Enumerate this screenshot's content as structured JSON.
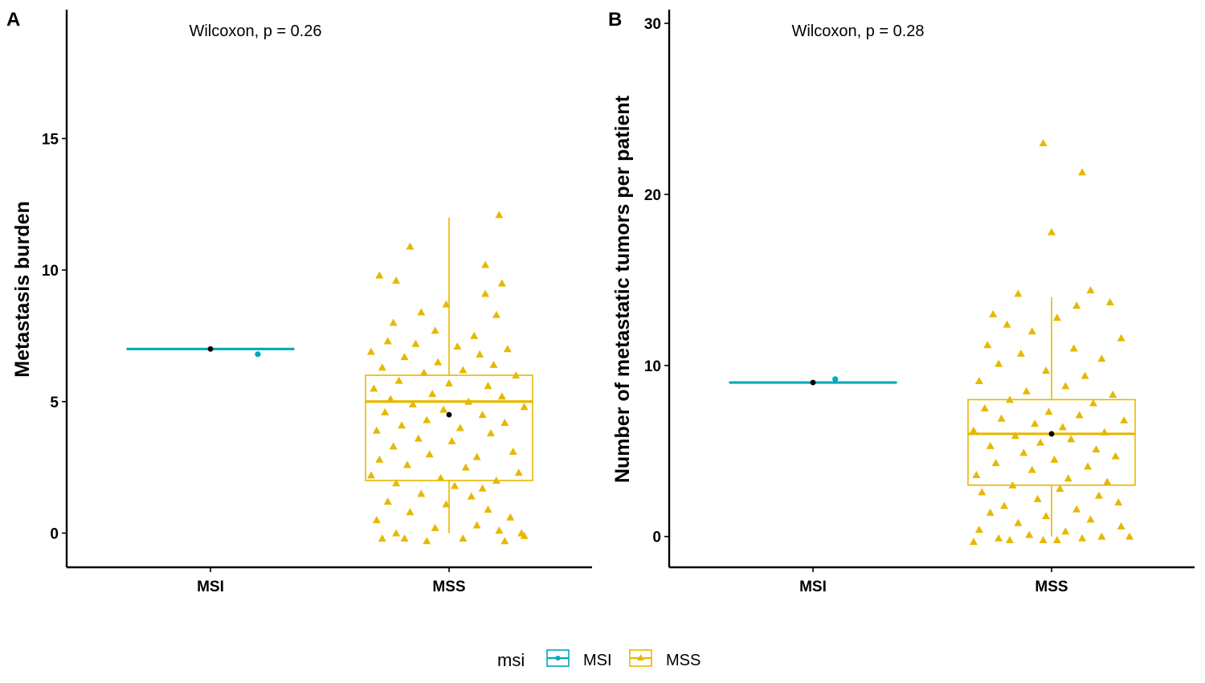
{
  "legend": {
    "title": "msi",
    "entries": [
      {
        "name": "MSI",
        "color": "#00A9BD",
        "shape": "circle"
      },
      {
        "name": "MSS",
        "color": "#E7B800",
        "shape": "triangle"
      }
    ],
    "position": "bottom"
  },
  "chart_data": [
    {
      "type": "box",
      "panel": "A",
      "annotation": "Wilcoxon, p = 0.26",
      "xlabel": "",
      "ylabel": "Metastasis burden",
      "categories": [
        "MSI",
        "MSS"
      ],
      "ylim": [
        -1.3,
        19.9
      ],
      "yticks": [
        0,
        5,
        10,
        15
      ],
      "grid": false,
      "boxes": [
        {
          "name": "MSI",
          "color": "#00A9BD",
          "q1": 7,
          "median": 7,
          "q3": 7,
          "whisker_low": 7,
          "whisker_high": 7,
          "mean": 7
        },
        {
          "name": "MSS",
          "color": "#E7B800",
          "q1": 2,
          "median": 5,
          "q3": 6,
          "whisker_low": 0,
          "whisker_high": 12,
          "mean": 4.5
        }
      ],
      "points": {
        "MSI": [
          {
            "x": 0.17,
            "y": 6.8
          }
        ],
        "MSS": [
          {
            "x": -0.14,
            "y": 10.9
          },
          {
            "x": 0.18,
            "y": 12.1
          },
          {
            "x": 0.13,
            "y": 10.2
          },
          {
            "x": -0.25,
            "y": 9.8
          },
          {
            "x": -0.19,
            "y": 9.6
          },
          {
            "x": 0.19,
            "y": 9.5
          },
          {
            "x": 0.13,
            "y": 9.1
          },
          {
            "x": -0.01,
            "y": 8.7
          },
          {
            "x": -0.1,
            "y": 8.4
          },
          {
            "x": 0.17,
            "y": 8.3
          },
          {
            "x": -0.2,
            "y": 8.0
          },
          {
            "x": -0.05,
            "y": 7.7
          },
          {
            "x": 0.09,
            "y": 7.5
          },
          {
            "x": -0.22,
            "y": 7.3
          },
          {
            "x": -0.12,
            "y": 7.2
          },
          {
            "x": 0.03,
            "y": 7.1
          },
          {
            "x": 0.21,
            "y": 7.0
          },
          {
            "x": -0.28,
            "y": 6.9
          },
          {
            "x": 0.11,
            "y": 6.8
          },
          {
            "x": -0.16,
            "y": 6.7
          },
          {
            "x": -0.04,
            "y": 6.5
          },
          {
            "x": 0.16,
            "y": 6.4
          },
          {
            "x": -0.24,
            "y": 6.3
          },
          {
            "x": 0.05,
            "y": 6.2
          },
          {
            "x": -0.09,
            "y": 6.1
          },
          {
            "x": 0.24,
            "y": 6.0
          },
          {
            "x": -0.18,
            "y": 5.8
          },
          {
            "x": 0.0,
            "y": 5.7
          },
          {
            "x": 0.14,
            "y": 5.6
          },
          {
            "x": -0.27,
            "y": 5.5
          },
          {
            "x": -0.06,
            "y": 5.3
          },
          {
            "x": 0.19,
            "y": 5.2
          },
          {
            "x": -0.21,
            "y": 5.1
          },
          {
            "x": 0.07,
            "y": 5.0
          },
          {
            "x": -0.13,
            "y": 4.9
          },
          {
            "x": 0.27,
            "y": 4.8
          },
          {
            "x": -0.02,
            "y": 4.7
          },
          {
            "x": -0.23,
            "y": 4.6
          },
          {
            "x": 0.12,
            "y": 4.5
          },
          {
            "x": -0.08,
            "y": 4.3
          },
          {
            "x": 0.2,
            "y": 4.2
          },
          {
            "x": -0.17,
            "y": 4.1
          },
          {
            "x": 0.04,
            "y": 4.0
          },
          {
            "x": -0.26,
            "y": 3.9
          },
          {
            "x": 0.15,
            "y": 3.8
          },
          {
            "x": -0.11,
            "y": 3.6
          },
          {
            "x": 0.01,
            "y": 3.5
          },
          {
            "x": -0.2,
            "y": 3.3
          },
          {
            "x": 0.23,
            "y": 3.1
          },
          {
            "x": -0.07,
            "y": 3.0
          },
          {
            "x": 0.1,
            "y": 2.9
          },
          {
            "x": -0.25,
            "y": 2.8
          },
          {
            "x": -0.15,
            "y": 2.6
          },
          {
            "x": 0.06,
            "y": 2.5
          },
          {
            "x": 0.25,
            "y": 2.3
          },
          {
            "x": -0.28,
            "y": 2.2
          },
          {
            "x": -0.03,
            "y": 2.1
          },
          {
            "x": 0.17,
            "y": 2.0
          },
          {
            "x": -0.19,
            "y": 1.9
          },
          {
            "x": 0.02,
            "y": 1.8
          },
          {
            "x": 0.12,
            "y": 1.7
          },
          {
            "x": -0.1,
            "y": 1.5
          },
          {
            "x": 0.08,
            "y": 1.4
          },
          {
            "x": -0.22,
            "y": 1.2
          },
          {
            "x": -0.01,
            "y": 1.1
          },
          {
            "x": 0.14,
            "y": 0.9
          },
          {
            "x": -0.14,
            "y": 0.8
          },
          {
            "x": 0.22,
            "y": 0.6
          },
          {
            "x": -0.26,
            "y": 0.5
          },
          {
            "x": 0.1,
            "y": 0.3
          },
          {
            "x": -0.05,
            "y": 0.2
          },
          {
            "x": 0.18,
            "y": 0.1
          },
          {
            "x": -0.19,
            "y": 0.0
          },
          {
            "x": 0.27,
            "y": -0.1
          },
          {
            "x": -0.24,
            "y": -0.2
          },
          {
            "x": 0.05,
            "y": -0.2
          },
          {
            "x": -0.08,
            "y": -0.3
          },
          {
            "x": 0.2,
            "y": -0.3
          },
          {
            "x": -0.16,
            "y": -0.2
          },
          {
            "x": 0.26,
            "y": 0.0
          }
        ]
      }
    },
    {
      "type": "box",
      "panel": "B",
      "annotation": "Wilcoxon, p = 0.28",
      "xlabel": "",
      "ylabel": "Number of metastatic tumors per patient",
      "categories": [
        "MSI",
        "MSS"
      ],
      "ylim": [
        -1.8,
        30.8
      ],
      "yticks": [
        0,
        10,
        20,
        30
      ],
      "grid": false,
      "boxes": [
        {
          "name": "MSI",
          "color": "#00A9BD",
          "q1": 9,
          "median": 9,
          "q3": 9,
          "whisker_low": 9,
          "whisker_high": 9,
          "mean": 9
        },
        {
          "name": "MSS",
          "color": "#E7B800",
          "q1": 3,
          "median": 6,
          "q3": 8,
          "whisker_low": 0,
          "whisker_high": 14,
          "mean": 6
        }
      ],
      "points": {
        "MSI": [
          {
            "x": 0.08,
            "y": 9.2
          }
        ],
        "MSS": [
          {
            "x": -0.03,
            "y": 23.0
          },
          {
            "x": 0.11,
            "y": 21.3
          },
          {
            "x": 0.0,
            "y": 17.8
          },
          {
            "x": -0.12,
            "y": 14.2
          },
          {
            "x": 0.14,
            "y": 14.4
          },
          {
            "x": 0.21,
            "y": 13.7
          },
          {
            "x": 0.09,
            "y": 13.5
          },
          {
            "x": -0.21,
            "y": 13.0
          },
          {
            "x": 0.02,
            "y": 12.8
          },
          {
            "x": -0.16,
            "y": 12.4
          },
          {
            "x": -0.07,
            "y": 12.0
          },
          {
            "x": 0.25,
            "y": 11.6
          },
          {
            "x": -0.23,
            "y": 11.2
          },
          {
            "x": 0.08,
            "y": 11.0
          },
          {
            "x": -0.11,
            "y": 10.7
          },
          {
            "x": 0.18,
            "y": 10.4
          },
          {
            "x": -0.19,
            "y": 10.1
          },
          {
            "x": -0.02,
            "y": 9.7
          },
          {
            "x": 0.12,
            "y": 9.4
          },
          {
            "x": -0.26,
            "y": 9.1
          },
          {
            "x": 0.05,
            "y": 8.8
          },
          {
            "x": -0.09,
            "y": 8.5
          },
          {
            "x": 0.22,
            "y": 8.3
          },
          {
            "x": -0.15,
            "y": 8.0
          },
          {
            "x": 0.15,
            "y": 7.8
          },
          {
            "x": -0.24,
            "y": 7.5
          },
          {
            "x": -0.01,
            "y": 7.3
          },
          {
            "x": 0.1,
            "y": 7.1
          },
          {
            "x": -0.18,
            "y": 6.9
          },
          {
            "x": 0.26,
            "y": 6.8
          },
          {
            "x": -0.06,
            "y": 6.6
          },
          {
            "x": 0.04,
            "y": 6.4
          },
          {
            "x": -0.28,
            "y": 6.2
          },
          {
            "x": 0.19,
            "y": 6.1
          },
          {
            "x": -0.13,
            "y": 5.9
          },
          {
            "x": 0.07,
            "y": 5.7
          },
          {
            "x": -0.04,
            "y": 5.5
          },
          {
            "x": -0.22,
            "y": 5.3
          },
          {
            "x": 0.16,
            "y": 5.1
          },
          {
            "x": -0.1,
            "y": 4.9
          },
          {
            "x": 0.23,
            "y": 4.7
          },
          {
            "x": 0.01,
            "y": 4.5
          },
          {
            "x": -0.2,
            "y": 4.3
          },
          {
            "x": 0.13,
            "y": 4.1
          },
          {
            "x": -0.07,
            "y": 3.9
          },
          {
            "x": -0.27,
            "y": 3.6
          },
          {
            "x": 0.06,
            "y": 3.4
          },
          {
            "x": 0.2,
            "y": 3.2
          },
          {
            "x": -0.14,
            "y": 3.0
          },
          {
            "x": 0.03,
            "y": 2.8
          },
          {
            "x": -0.25,
            "y": 2.6
          },
          {
            "x": 0.17,
            "y": 2.4
          },
          {
            "x": -0.05,
            "y": 2.2
          },
          {
            "x": 0.24,
            "y": 2.0
          },
          {
            "x": -0.17,
            "y": 1.8
          },
          {
            "x": 0.09,
            "y": 1.6
          },
          {
            "x": -0.22,
            "y": 1.4
          },
          {
            "x": -0.02,
            "y": 1.2
          },
          {
            "x": 0.14,
            "y": 1.0
          },
          {
            "x": -0.12,
            "y": 0.8
          },
          {
            "x": 0.25,
            "y": 0.6
          },
          {
            "x": -0.26,
            "y": 0.4
          },
          {
            "x": 0.05,
            "y": 0.3
          },
          {
            "x": -0.08,
            "y": 0.1
          },
          {
            "x": 0.18,
            "y": 0.0
          },
          {
            "x": -0.19,
            "y": -0.1
          },
          {
            "x": 0.11,
            "y": -0.1
          },
          {
            "x": -0.03,
            "y": -0.2
          },
          {
            "x": -0.28,
            "y": -0.3
          },
          {
            "x": 0.28,
            "y": 0.0
          },
          {
            "x": -0.15,
            "y": -0.2
          },
          {
            "x": 0.02,
            "y": -0.2
          }
        ]
      }
    }
  ]
}
